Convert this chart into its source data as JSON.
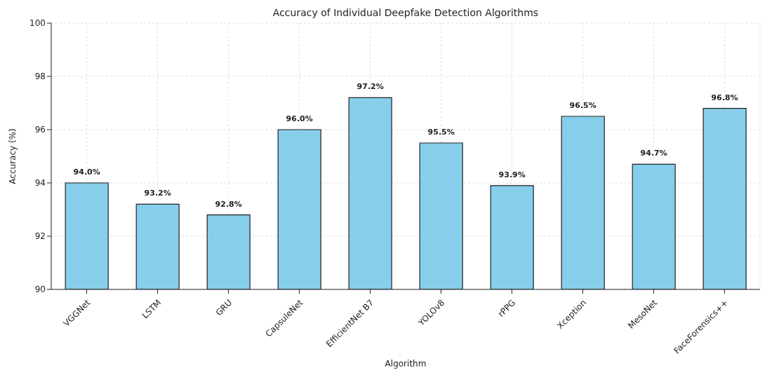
{
  "chart_data": {
    "type": "bar",
    "title": "Accuracy of Individual Deepfake Detection Algorithms",
    "xlabel": "Algorithm",
    "ylabel": "Accuracy (%)",
    "categories": [
      "VGGNet",
      "LSTM",
      "GRU",
      "CapsuleNet",
      "EfficientNet B7",
      "YOLOv8",
      "rPPG",
      "Xception",
      "MesoNet",
      "FaceForensics++"
    ],
    "values": [
      94.0,
      93.2,
      92.8,
      96.0,
      97.2,
      95.5,
      93.9,
      96.5,
      94.7,
      96.8
    ],
    "value_labels": [
      "94.0%",
      "93.2%",
      "92.8%",
      "96.0%",
      "97.2%",
      "95.5%",
      "93.9%",
      "96.5%",
      "94.7%",
      "96.8%"
    ],
    "color": "#87ceeb",
    "ylim": [
      90,
      100
    ],
    "yticks": [
      90,
      92,
      94,
      96,
      98,
      100
    ],
    "grid": true
  }
}
